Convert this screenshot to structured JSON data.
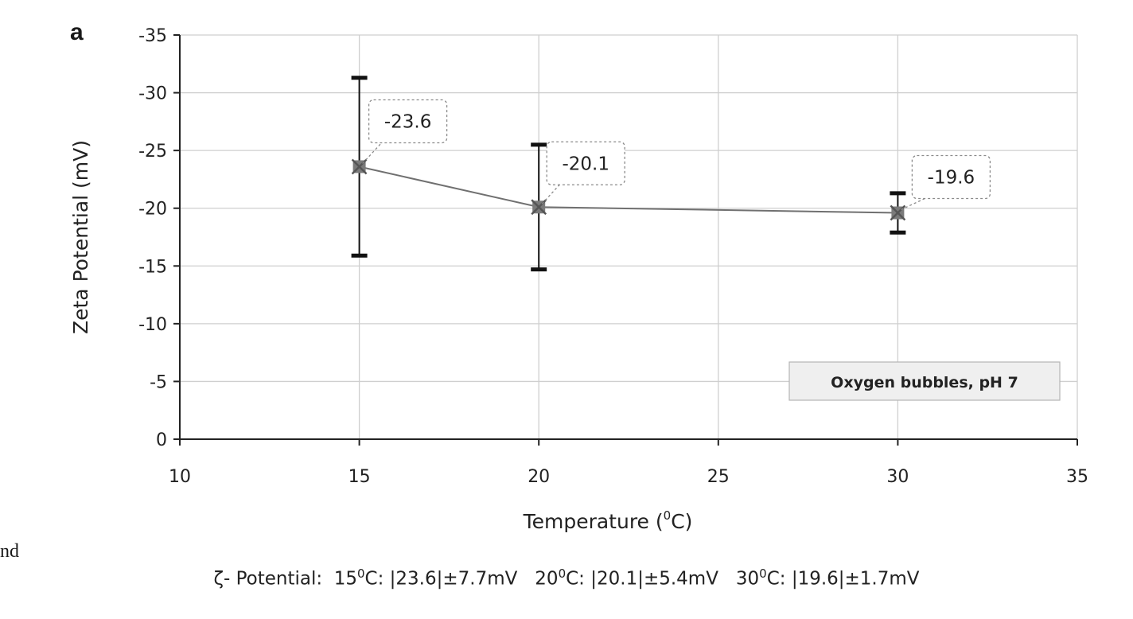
{
  "panel_letter": "a",
  "stray_text": "nd",
  "footer": {
    "prefix": "ζ- Potential:  15",
    "s1": "C: |23.6|±7.7mV   20",
    "s2": "C: |20.1|±5.4mV   30",
    "s3": "C: |19.6|±1.7mV",
    "degree_sup": "0"
  },
  "chart_data": {
    "type": "line",
    "title": "",
    "xlabel_main": "Temperature (",
    "xlabel_sup": "0",
    "xlabel_tail": "C)",
    "ylabel": "Zeta Potential (mV)",
    "xlim": [
      10,
      35
    ],
    "ylim": [
      0,
      -35
    ],
    "x_ticks": [
      10,
      15,
      20,
      25,
      30,
      35
    ],
    "y_ticks": [
      0,
      -5,
      -10,
      -15,
      -20,
      -25,
      -30,
      -35
    ],
    "grid": true,
    "series": [
      {
        "x": [
          15,
          20,
          30
        ],
        "y": [
          -23.6,
          -20.1,
          -19.6
        ],
        "error": [
          7.7,
          5.4,
          1.7
        ],
        "data_labels": [
          "-23.6",
          "-20.1",
          "-19.6"
        ],
        "color": "#707070"
      }
    ],
    "annotation": "Oxygen bubbles, pH 7",
    "annotation_placement": "bottom-right"
  }
}
